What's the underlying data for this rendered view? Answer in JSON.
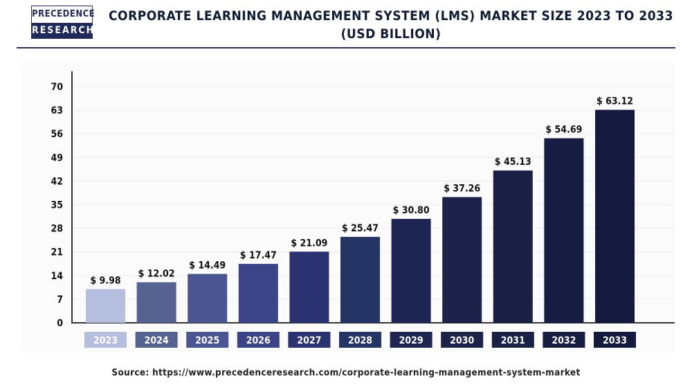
{
  "logo": {
    "line1": "PRECEDENCE",
    "line2": "RESEARCH"
  },
  "title_line1": "CORPORATE LEARNING MANAGEMENT SYSTEM (LMS) MARKET SIZE 2023 TO 2033",
  "title_line2": "(USD BILLION)",
  "source": "Source: https://www.precedenceresearch.com/corporate-learning-management-system-market",
  "chart_data": {
    "type": "bar",
    "title": "CORPORATE LEARNING MANAGEMENT SYSTEM (LMS) MARKET SIZE 2023 TO 2033 (USD BILLION)",
    "categories": [
      "2023",
      "2024",
      "2025",
      "2026",
      "2027",
      "2028",
      "2029",
      "2030",
      "2031",
      "2032",
      "2033"
    ],
    "values": [
      9.98,
      12.02,
      14.49,
      17.47,
      21.09,
      25.47,
      30.8,
      37.26,
      45.13,
      54.69,
      63.12
    ],
    "labels": [
      "$ 9.98",
      "$ 12.02",
      "$ 14.49",
      "$ 17.47",
      "$ 21.09",
      "$ 25.47",
      "$ 30.80",
      "$ 37.26",
      "$ 45.13",
      "$ 54.69",
      "$ 63.12"
    ],
    "yticks": [
      0,
      7,
      14,
      21,
      28,
      35,
      42,
      49,
      56,
      63,
      70
    ],
    "ylim": [
      0,
      70
    ],
    "grid": true,
    "colors": [
      "#b5bedd",
      "#56628f",
      "#4a5591",
      "#3b4486",
      "#2b3272",
      "#243565",
      "#1e2552",
      "#1c2249",
      "#191f45",
      "#171c42",
      "#141a3e"
    ]
  }
}
